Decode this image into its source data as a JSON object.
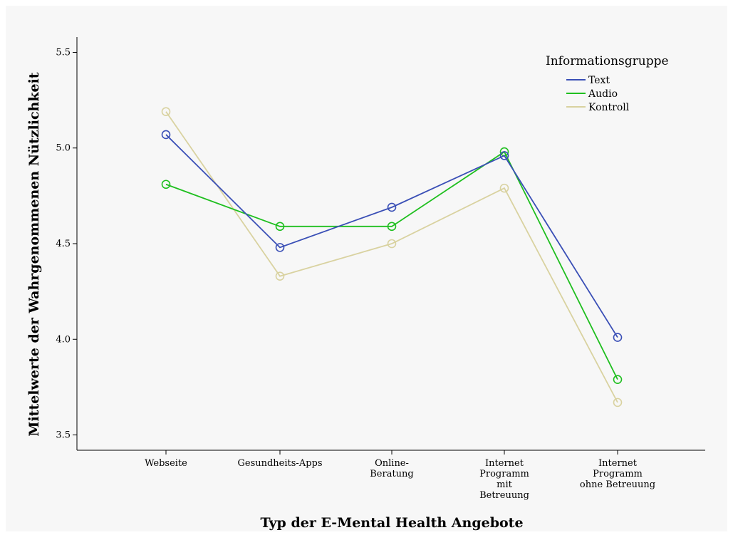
{
  "chart_data": {
    "type": "line",
    "title": "",
    "xlabel": "Typ der E-Mental Health Angebote",
    "ylabel": "Mittelwerte der Wahrgenommenen Nützlichkeit",
    "categories": [
      [
        "Webseite"
      ],
      [
        "Gesundheits-Apps"
      ],
      [
        "Online-",
        "Beratung"
      ],
      [
        "Internet",
        "Programm",
        "mit",
        "Betreuung"
      ],
      [
        "Internet",
        "Programm",
        "ohne Betreuung"
      ]
    ],
    "ylim": [
      3.42,
      5.58
    ],
    "yticks": [
      "3.5",
      "4.0",
      "4.5",
      "5.0",
      "5.5"
    ],
    "grid": false,
    "legend_title": "Informationsgruppe",
    "legend_position": "top-right",
    "series": [
      {
        "name": "Text",
        "color": "#3a4fb6",
        "values": [
          5.07,
          4.48,
          4.69,
          4.96,
          4.01
        ]
      },
      {
        "name": "Audio",
        "color": "#1fbf1f",
        "values": [
          4.81,
          4.59,
          4.59,
          4.98,
          3.79
        ]
      },
      {
        "name": "Kontroll",
        "color": "#d9d2a0",
        "values": [
          5.19,
          4.33,
          4.5,
          4.79,
          3.67
        ]
      }
    ],
    "marker": "circle-open"
  }
}
